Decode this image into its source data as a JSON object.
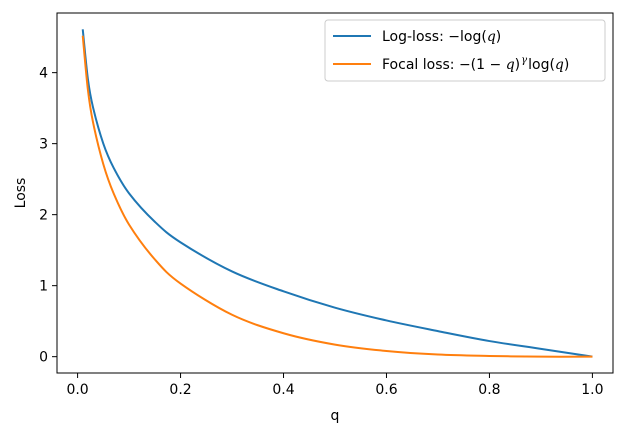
{
  "chart_data": {
    "type": "line",
    "title": "",
    "xlabel": "q",
    "ylabel": "Loss",
    "xlim": [
      -0.04,
      1.04
    ],
    "ylim": [
      -0.23,
      4.84
    ],
    "x_ticks": [
      0.0,
      0.2,
      0.4,
      0.6,
      0.8,
      1.0
    ],
    "x_tick_labels": [
      "0.0",
      "0.2",
      "0.4",
      "0.6",
      "0.8",
      "1.0"
    ],
    "y_ticks": [
      0,
      1,
      2,
      3,
      4
    ],
    "y_tick_labels": [
      "0",
      "1",
      "2",
      "3",
      "4"
    ],
    "grid": false,
    "legend_position": "top-right",
    "series": [
      {
        "name": "Log-loss: −log(q)",
        "legend_parts": [
          {
            "t": "Log-loss: −log(",
            "it": false
          },
          {
            "t": "q",
            "it": true
          },
          {
            "t": ")",
            "it": false
          }
        ],
        "color": "#1f77b4",
        "x": [
          0.01,
          0.02,
          0.03,
          0.05,
          0.07,
          0.1,
          0.15,
          0.2,
          0.3,
          0.4,
          0.5,
          0.6,
          0.7,
          0.8,
          0.9,
          1.0
        ],
        "y": [
          4.61,
          3.91,
          3.51,
          3.0,
          2.66,
          2.3,
          1.9,
          1.61,
          1.2,
          0.92,
          0.69,
          0.51,
          0.36,
          0.22,
          0.11,
          0.0
        ]
      },
      {
        "name": "Focal loss: −(1 − q)^γ log(q)",
        "legend_parts": [
          {
            "t": "Focal loss: −(1 − ",
            "it": false
          },
          {
            "t": "q",
            "it": true
          },
          {
            "t": ")",
            "it": false
          },
          {
            "t": "γ",
            "it": true,
            "sup": true
          },
          {
            "t": "log(",
            "it": false
          },
          {
            "t": "q",
            "it": true
          },
          {
            "t": ")",
            "it": false
          }
        ],
        "color": "#ff7f0e",
        "x": [
          0.01,
          0.02,
          0.03,
          0.05,
          0.07,
          0.1,
          0.15,
          0.2,
          0.3,
          0.4,
          0.5,
          0.6,
          0.7,
          0.8,
          0.9,
          1.0
        ],
        "y": [
          4.52,
          3.76,
          3.3,
          2.71,
          2.3,
          1.86,
          1.37,
          1.03,
          0.59,
          0.33,
          0.17,
          0.08,
          0.03,
          0.01,
          0.0,
          0.0
        ]
      }
    ]
  }
}
